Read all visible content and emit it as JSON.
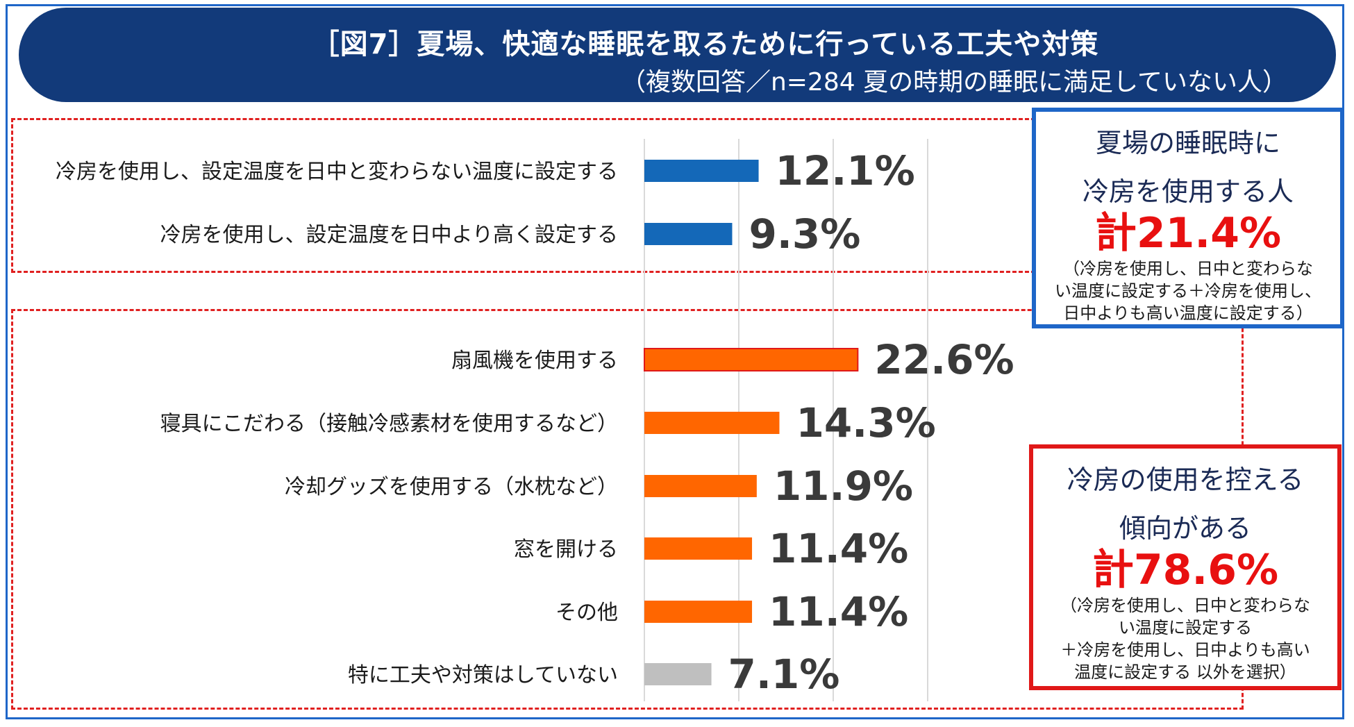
{
  "title": {
    "main": "［図7］夏場、快適な睡眠を取るために行っている工夫や対策",
    "sub": "（複数回答／n=284 夏の時期の睡眠に満足していない人）"
  },
  "chart_data": {
    "type": "bar",
    "orientation": "horizontal",
    "title": "［図7］夏場、快適な睡眠を取るために行っている工夫や対策",
    "subtitle": "（複数回答／n=284 夏の時期の睡眠に満足していない人）",
    "xlabel": "",
    "ylabel": "",
    "xlim": [
      0,
      30
    ],
    "grid": true,
    "unit": "%",
    "categories": [
      "冷房を使用し、設定温度を日中と変わらない温度に設定する",
      "冷房を使用し、設定温度を日中より高く設定する",
      "扇風機を使用する",
      "寝具にこだわる（接触冷感素材を使用するなど）",
      "冷却グッズを使用する（水枕など）",
      "窓を開ける",
      "その他",
      "特に工夫や対策はしていない"
    ],
    "values": [
      12.1,
      9.3,
      22.6,
      14.3,
      11.9,
      11.4,
      11.4,
      7.1
    ],
    "value_labels": [
      "12.1%",
      "9.3%",
      "22.6%",
      "14.3%",
      "11.9%",
      "11.4%",
      "11.4%",
      "7.1%"
    ],
    "colors": [
      "#1468b8",
      "#1468b8",
      "#ff6600",
      "#ff6600",
      "#ff6600",
      "#ff6600",
      "#ff6600",
      "#bfbfbf"
    ],
    "groups": [
      {
        "name": "冷房を使用する",
        "indices": [
          0,
          1
        ]
      },
      {
        "name": "冷房の使用を控える",
        "indices": [
          2,
          3,
          4,
          5,
          6,
          7
        ]
      }
    ]
  },
  "callouts": {
    "aircon": {
      "heading_line1": "夏場の睡眠時に",
      "heading_line2": "冷房を使用する人",
      "total": "計21.4%",
      "note_line1": "（冷房を使用し、日中と変わらな",
      "note_line2": "い温度に設定する＋冷房を使用し、",
      "note_line3": "日中よりも高い温度に設定する）",
      "border_color": "#1e66c8"
    },
    "no_aircon": {
      "heading_line1": "冷房の使用を控える",
      "heading_line2": "傾向がある",
      "total": "計78.6%",
      "note_line1": "（冷房を使用し、日中と変わらな",
      "note_line2": "い温度に設定する",
      "note_line3": "＋冷房を使用し、日中よりも高い",
      "note_line4": "温度に設定する 以外を選択）",
      "border_color": "#e01818"
    }
  }
}
